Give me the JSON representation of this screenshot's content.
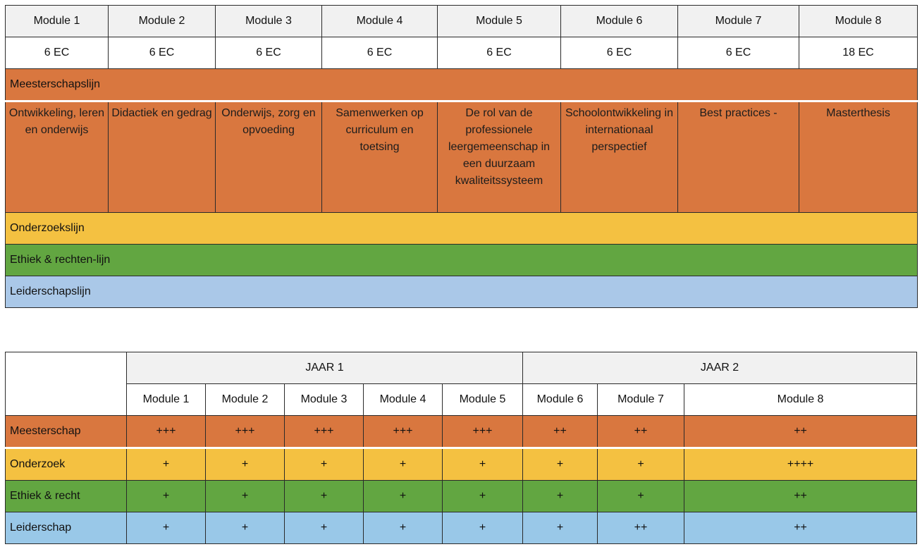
{
  "table1": {
    "modules": [
      "Module 1",
      "Module 2",
      "Module 3",
      "Module 4",
      "Module 5",
      "Module 6",
      "Module 7",
      "Module 8"
    ],
    "credits": [
      "6 EC",
      "6 EC",
      "6 EC",
      "6 EC",
      "6 EC",
      "6 EC",
      "6 EC",
      "18 EC"
    ],
    "lines": {
      "meesterschap": "Meesterschapslijn",
      "onderzoek": "Onderzoekslijn",
      "ethiek": "Ethiek & rechten-lijn",
      "leiderschap": "Leiderschapslijn"
    },
    "subjects": [
      "Ontwikkeling, leren en onderwijs",
      "Didactiek en gedrag",
      "Onderwijs, zorg en opvoeding",
      "Samenwerken op curriculum en toetsing",
      "De rol van de professionele leergemeenschap in een duurzaam kwaliteitssysteem",
      "Schoolontwikkeling in internationaal perspectief",
      "Best practices -",
      "Masterthesis"
    ],
    "colors": {
      "orange": "#d9773f",
      "yellow": "#f4c141",
      "green": "#62a641",
      "blue": "#aac8e8",
      "header": "#f1f1f1"
    }
  },
  "table2": {
    "years": [
      "JAAR 1",
      "JAAR 2"
    ],
    "modules": [
      "Module 1",
      "Module 2",
      "Module 3",
      "Module 4",
      "Module 5",
      "Module 6",
      "Module 7",
      "Module 8"
    ],
    "rows": [
      {
        "label": "Meesterschap",
        "values": [
          "+++",
          "+++",
          "+++",
          "+++",
          "+++",
          "++",
          "++",
          "++"
        ]
      },
      {
        "label": "Onderzoek",
        "values": [
          "+",
          "+",
          "+",
          "+",
          "+",
          "+",
          "+",
          "++++"
        ]
      },
      {
        "label": "Ethiek & recht",
        "values": [
          "+",
          "+",
          "+",
          "+",
          "+",
          "+",
          "+",
          "++"
        ]
      },
      {
        "label": "Leiderschap",
        "values": [
          "+",
          "+",
          "+",
          "+",
          "+",
          "+",
          "++",
          "++"
        ]
      }
    ],
    "colors": {
      "orange": "#d9773f",
      "yellow": "#f4c141",
      "green": "#62a641",
      "blue": "#99c8e8"
    }
  }
}
